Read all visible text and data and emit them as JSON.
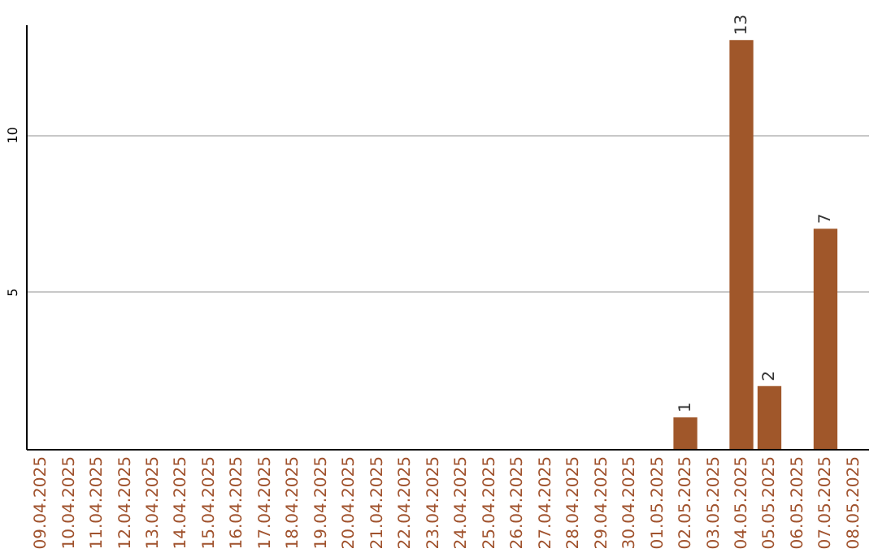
{
  "chart_data": {
    "type": "bar",
    "categories": [
      "09.04.2025",
      "10.04.2025",
      "11.04.2025",
      "12.04.2025",
      "13.04.2025",
      "14.04.2025",
      "15.04.2025",
      "16.04.2025",
      "17.04.2025",
      "18.04.2025",
      "19.04.2025",
      "20.04.2025",
      "21.04.2025",
      "22.04.2025",
      "23.04.2025",
      "24.04.2025",
      "25.04.2025",
      "26.04.2025",
      "27.04.2025",
      "28.04.2025",
      "29.04.2025",
      "30.04.2025",
      "01.05.2025",
      "02.05.2025",
      "03.05.2025",
      "04.05.2025",
      "05.05.2025",
      "06.05.2025",
      "07.05.2025",
      "08.05.2025"
    ],
    "values": [
      0,
      0,
      0,
      0,
      0,
      0,
      0,
      0,
      0,
      0,
      0,
      0,
      0,
      0,
      0,
      0,
      0,
      0,
      0,
      0,
      0,
      0,
      0,
      1,
      0,
      13,
      2,
      0,
      7,
      0
    ],
    "value_labels": [
      null,
      null,
      null,
      null,
      null,
      null,
      null,
      null,
      null,
      null,
      null,
      null,
      null,
      null,
      null,
      null,
      null,
      null,
      null,
      null,
      null,
      null,
      null,
      "1",
      null,
      "13",
      "2",
      null,
      "7",
      null
    ],
    "color": "#a0572a",
    "ylim": [
      0,
      13.5
    ],
    "yticks": [
      5,
      10
    ],
    "grid": "y"
  }
}
